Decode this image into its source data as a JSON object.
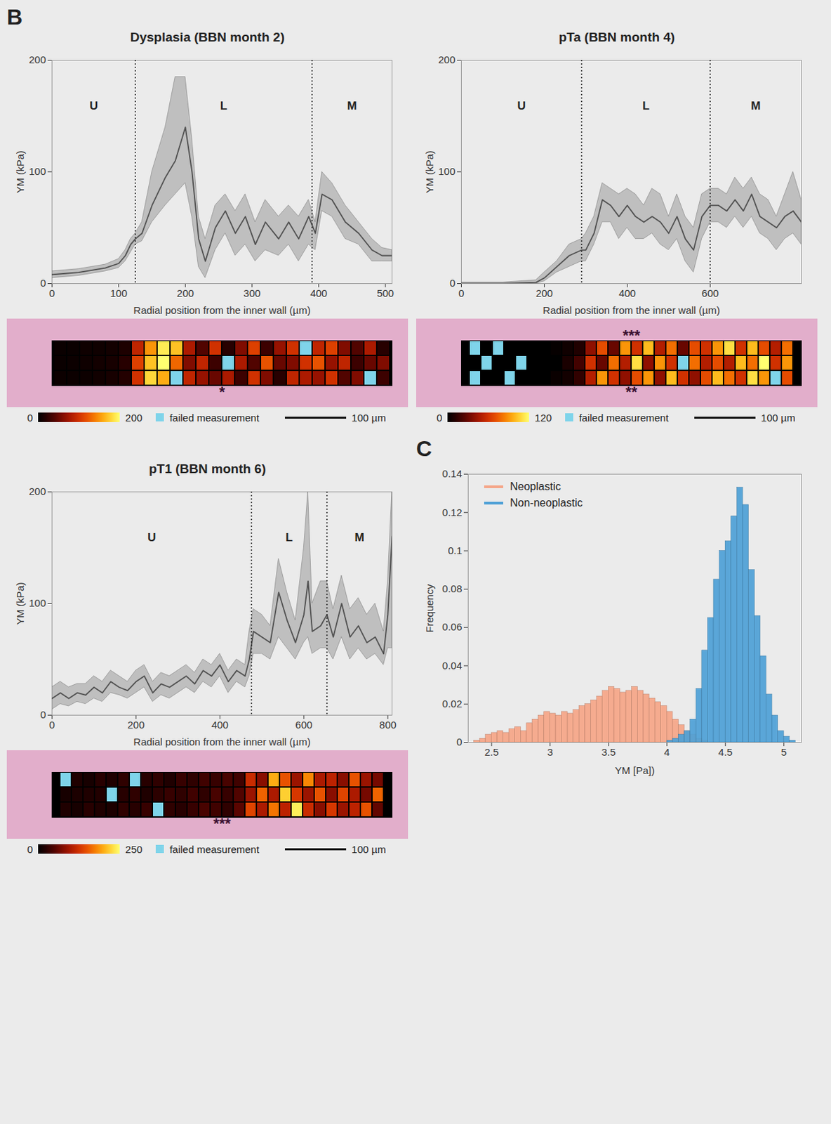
{
  "chart_data": [
    {
      "type": "line",
      "panel": "B",
      "title": "Dysplasia (BBN month 2)",
      "x_label": "Radial position from the inner wall (µm)",
      "y_label": "YM (kPa)",
      "x": [
        0,
        20,
        40,
        60,
        80,
        100,
        110,
        118,
        125,
        135,
        150,
        170,
        185,
        200,
        210,
        220,
        230,
        245,
        260,
        275,
        290,
        305,
        320,
        340,
        355,
        370,
        385,
        395,
        405,
        420,
        440,
        460,
        480,
        495,
        510
      ],
      "values": [
        8,
        9,
        10,
        12,
        14,
        18,
        25,
        35,
        40,
        45,
        70,
        95,
        110,
        140,
        100,
        40,
        20,
        50,
        65,
        45,
        60,
        35,
        55,
        40,
        55,
        40,
        60,
        45,
        80,
        75,
        55,
        45,
        30,
        25,
        25
      ],
      "lower": [
        5,
        6,
        7,
        9,
        11,
        14,
        20,
        28,
        35,
        38,
        55,
        70,
        80,
        90,
        60,
        15,
        5,
        30,
        45,
        25,
        35,
        20,
        30,
        25,
        35,
        20,
        35,
        30,
        65,
        60,
        40,
        35,
        20,
        20,
        20
      ],
      "upper": [
        11,
        12,
        13,
        15,
        17,
        22,
        30,
        40,
        45,
        55,
        100,
        140,
        185,
        185,
        130,
        60,
        40,
        70,
        80,
        65,
        80,
        55,
        75,
        60,
        70,
        60,
        75,
        55,
        100,
        90,
        70,
        55,
        40,
        32,
        30
      ],
      "color": "#505050",
      "xlim": [
        0,
        510
      ],
      "ylim": [
        0,
        200
      ],
      "xticks": [
        0,
        100,
        200,
        300,
        400,
        500
      ],
      "yticks": [
        0,
        100,
        200
      ],
      "dividers": [
        125,
        390
      ],
      "regions": [
        "U",
        "L",
        "M"
      ],
      "heatmap": {
        "rows": [
          [
            5,
            5,
            8,
            8,
            10,
            15,
            90,
            150,
            190,
            170,
            80,
            40,
            100,
            20,
            60,
            110,
            30,
            70,
            100,
            null,
            90,
            110,
            60,
            40,
            80,
            20
          ],
          [
            5,
            6,
            8,
            10,
            12,
            20,
            110,
            170,
            200,
            130,
            60,
            90,
            30,
            null,
            80,
            40,
            120,
            50,
            60,
            100,
            120,
            70,
            90,
            30,
            50,
            60
          ],
          [
            6,
            6,
            7,
            9,
            12,
            18,
            100,
            180,
            160,
            null,
            90,
            70,
            50,
            80,
            30,
            100,
            60,
            20,
            90,
            80,
            70,
            100,
            40,
            60,
            null,
            30
          ]
        ],
        "colorbar": {
          "range": [
            0,
            200
          ],
          "ticks": [
            0,
            200
          ]
        },
        "failed_label": "failed measurement",
        "annotations": [
          "*"
        ],
        "scale_bar": "100 µm"
      }
    },
    {
      "type": "line",
      "title": "pTa (BBN month 4)",
      "x_label": "Radial position from the inner wall (µm)",
      "y_label": "YM (kPa)",
      "x": [
        0,
        100,
        180,
        200,
        230,
        260,
        290,
        300,
        320,
        340,
        360,
        380,
        400,
        420,
        440,
        460,
        480,
        500,
        520,
        540,
        560,
        580,
        600,
        620,
        640,
        660,
        680,
        700,
        720,
        740,
        760,
        780,
        800,
        820
      ],
      "values": [
        0,
        0,
        1,
        5,
        15,
        25,
        30,
        30,
        45,
        75,
        70,
        60,
        70,
        60,
        55,
        60,
        55,
        45,
        60,
        40,
        30,
        60,
        70,
        70,
        65,
        75,
        65,
        80,
        60,
        55,
        50,
        60,
        65,
        55
      ],
      "lower": [
        0,
        0,
        0,
        2,
        10,
        15,
        20,
        20,
        35,
        55,
        55,
        40,
        50,
        40,
        40,
        45,
        35,
        30,
        40,
        20,
        10,
        40,
        55,
        55,
        50,
        60,
        50,
        60,
        45,
        40,
        30,
        40,
        45,
        35
      ],
      "upper": [
        1,
        1,
        3,
        10,
        20,
        35,
        40,
        45,
        60,
        90,
        85,
        80,
        85,
        80,
        70,
        85,
        80,
        60,
        80,
        60,
        50,
        80,
        85,
        85,
        80,
        95,
        85,
        95,
        80,
        75,
        60,
        80,
        100,
        75
      ],
      "color": "#505050",
      "xlim": [
        0,
        820
      ],
      "ylim": [
        0,
        200
      ],
      "xticks": [
        0,
        200,
        400,
        600
      ],
      "yticks": [
        0,
        100,
        200
      ],
      "dividers": [
        290,
        600
      ],
      "regions": [
        "U",
        "L",
        "M"
      ],
      "heatmap": {
        "rows": [
          [
            null,
            0,
            null,
            0,
            0,
            0,
            0,
            2,
            5,
            10,
            40,
            70,
            30,
            90,
            60,
            100,
            50,
            80,
            30,
            70,
            60,
            90,
            110,
            60,
            100,
            70,
            50,
            80
          ],
          [
            0,
            null,
            0,
            0,
            null,
            0,
            0,
            0,
            8,
            20,
            60,
            30,
            80,
            50,
            110,
            40,
            90,
            60,
            null,
            80,
            50,
            70,
            50,
            100,
            80,
            120,
            60,
            90
          ],
          [
            null,
            0,
            0,
            null,
            0,
            0,
            0,
            3,
            6,
            15,
            50,
            90,
            60,
            40,
            70,
            90,
            40,
            100,
            60,
            40,
            70,
            100,
            80,
            60,
            110,
            90,
            null,
            70
          ]
        ],
        "colorbar": {
          "range": [
            0,
            120
          ],
          "ticks": [
            0,
            120
          ]
        },
        "failed_label": "failed measurement",
        "annotations": [
          "**",
          "***"
        ],
        "scale_bar": "100 µm"
      }
    },
    {
      "type": "line",
      "title": "pT1 (BBN month 6)",
      "x_label": "Radial position from the inner wall (µm)",
      "y_label": "YM (kPa)",
      "x": [
        0,
        20,
        40,
        60,
        80,
        100,
        120,
        140,
        160,
        180,
        200,
        220,
        240,
        260,
        280,
        300,
        320,
        340,
        360,
        380,
        400,
        420,
        440,
        460,
        470,
        480,
        500,
        520,
        540,
        560,
        580,
        600,
        610,
        620,
        640,
        655,
        670,
        690,
        710,
        730,
        750,
        770,
        790,
        800,
        810
      ],
      "values": [
        15,
        20,
        15,
        20,
        18,
        25,
        20,
        30,
        25,
        22,
        30,
        35,
        20,
        28,
        25,
        30,
        35,
        28,
        40,
        35,
        45,
        30,
        40,
        35,
        50,
        75,
        70,
        65,
        110,
        85,
        65,
        90,
        120,
        75,
        80,
        90,
        70,
        100,
        70,
        80,
        65,
        70,
        55,
        90,
        160
      ],
      "lower": [
        5,
        10,
        8,
        12,
        10,
        15,
        12,
        20,
        18,
        15,
        20,
        25,
        12,
        18,
        15,
        20,
        25,
        20,
        30,
        25,
        35,
        20,
        30,
        25,
        35,
        55,
        55,
        50,
        70,
        60,
        50,
        65,
        70,
        55,
        60,
        60,
        50,
        70,
        50,
        60,
        50,
        55,
        45,
        60,
        60
      ],
      "upper": [
        25,
        30,
        25,
        28,
        28,
        35,
        30,
        40,
        35,
        30,
        40,
        45,
        30,
        38,
        35,
        40,
        45,
        38,
        50,
        45,
        55,
        40,
        50,
        45,
        75,
        95,
        90,
        80,
        140,
        110,
        85,
        150,
        200,
        100,
        120,
        120,
        95,
        125,
        95,
        105,
        90,
        100,
        75,
        120,
        200
      ],
      "color": "#505050",
      "xlim": [
        0,
        810
      ],
      "ylim": [
        0,
        200
      ],
      "xticks": [
        0,
        200,
        400,
        600,
        800
      ],
      "yticks": [
        0,
        100,
        200
      ],
      "dividers": [
        475,
        655
      ],
      "regions": [
        "U",
        "L",
        "M"
      ],
      "heatmap": {
        "rows": [
          [
            null,
            20,
            15,
            25,
            20,
            30,
            null,
            25,
            30,
            20,
            35,
            30,
            40,
            35,
            45,
            40,
            120,
            80,
            200,
            150,
            90,
            180,
            100,
            110,
            80,
            150,
            90,
            70
          ],
          [
            15,
            18,
            20,
            22,
            null,
            25,
            30,
            20,
            28,
            35,
            30,
            40,
            30,
            45,
            35,
            50,
            90,
            160,
            100,
            220,
            130,
            90,
            150,
            80,
            140,
            100,
            70,
            160
          ],
          [
            20,
            15,
            25,
            20,
            18,
            30,
            25,
            35,
            null,
            30,
            25,
            35,
            45,
            40,
            30,
            55,
            140,
            100,
            170,
            110,
            240,
            120,
            80,
            130,
            90,
            110,
            150,
            60
          ]
        ],
        "colorbar": {
          "range": [
            0,
            250
          ],
          "ticks": [
            0,
            250
          ]
        },
        "failed_label": "failed measurement",
        "annotations": [
          "***"
        ],
        "scale_bar": "100 µm"
      }
    },
    {
      "type": "histogram",
      "panel": "C",
      "x_label": "YM [Pa])",
      "y_label": "Frequency",
      "bins": [
        2.35,
        2.4,
        2.45,
        2.5,
        2.55,
        2.6,
        2.65,
        2.7,
        2.75,
        2.8,
        2.85,
        2.9,
        2.95,
        3,
        3.05,
        3.1,
        3.15,
        3.2,
        3.25,
        3.3,
        3.35,
        3.4,
        3.45,
        3.5,
        3.55,
        3.6,
        3.65,
        3.7,
        3.75,
        3.8,
        3.85,
        3.9,
        3.95,
        4,
        4.05,
        4.1,
        4.15,
        4.2,
        4.25,
        4.3,
        4.35,
        4.4,
        4.45,
        4.5,
        4.55,
        4.6,
        4.65,
        4.7,
        4.75,
        4.8,
        4.85,
        4.9,
        4.95,
        5,
        5.05,
        5.1
      ],
      "series": [
        {
          "name": "Neoplastic",
          "color": "#f5a587",
          "values": [
            0.001,
            0.002,
            0.004,
            0.005,
            0.006,
            0.005,
            0.007,
            0.008,
            0.006,
            0.01,
            0.012,
            0.014,
            0.016,
            0.015,
            0.014,
            0.016,
            0.015,
            0.017,
            0.019,
            0.02,
            0.022,
            0.024,
            0.027,
            0.029,
            0.028,
            0.026,
            0.027,
            0.029,
            0.027,
            0.025,
            0.023,
            0.021,
            0.019,
            0.016,
            0.012,
            0.009,
            0.006,
            0.004,
            0.002,
            0.001,
            0,
            0,
            0,
            0,
            0,
            0,
            0,
            0,
            0,
            0,
            0,
            0,
            0,
            0,
            0
          ]
        },
        {
          "name": "Non-neoplastic",
          "color": "#4d9fd6",
          "values": [
            0,
            0,
            0,
            0,
            0,
            0,
            0,
            0,
            0,
            0,
            0,
            0,
            0,
            0,
            0,
            0,
            0,
            0,
            0,
            0,
            0,
            0,
            0,
            0,
            0,
            0,
            0,
            0,
            0,
            0,
            0,
            0,
            0,
            0.001,
            0.002,
            0.004,
            0.006,
            0.012,
            0.028,
            0.048,
            0.065,
            0.085,
            0.1,
            0.105,
            0.118,
            0.133,
            0.124,
            0.09,
            0.066,
            0.045,
            0.025,
            0.014,
            0.006,
            0.003,
            0.001
          ]
        }
      ],
      "xlim": [
        2.3,
        5.15
      ],
      "ylim": [
        0,
        0.14
      ],
      "xticks": [
        2.5,
        3,
        3.5,
        4,
        4.5,
        5
      ],
      "yticks": [
        0,
        0.02,
        0.04,
        0.06,
        0.08,
        0.1,
        0.12,
        0.14
      ],
      "legend": "top-left"
    }
  ]
}
